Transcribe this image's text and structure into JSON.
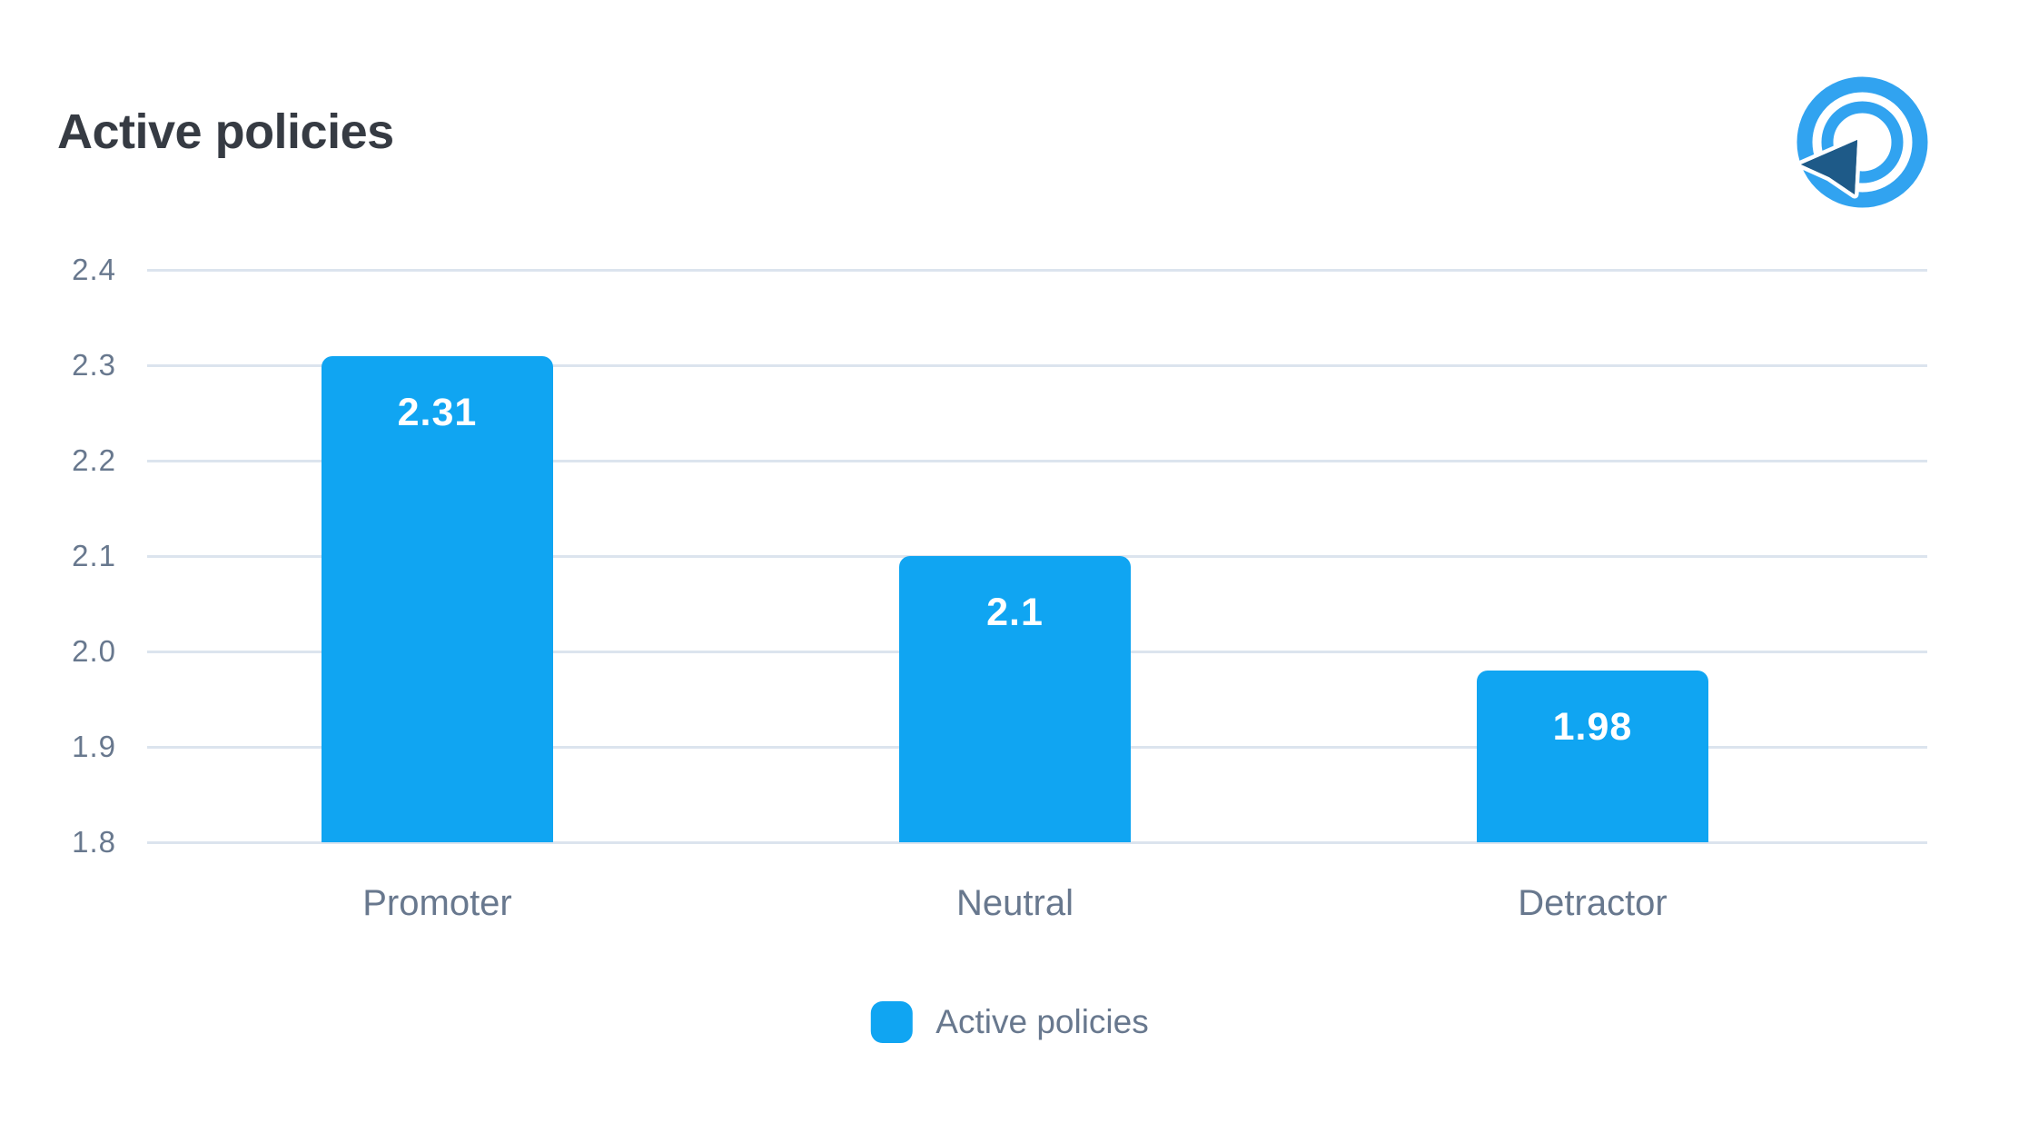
{
  "header": {
    "title": "Active policies"
  },
  "logo": {
    "name": "target-cursor-logo",
    "ring_color": "#31a3f0",
    "arrow_color": "#1e5a88"
  },
  "chart_data": {
    "type": "bar",
    "title": "Active policies",
    "categories": [
      "Promoter",
      "Neutral",
      "Detractor"
    ],
    "values": [
      2.31,
      2.1,
      1.98
    ],
    "value_labels": [
      "2.31",
      "2.1",
      "1.98"
    ],
    "ylim": [
      1.8,
      2.4
    ],
    "yticks": [
      "2.4",
      "2.3",
      "2.2",
      "2.1",
      "2.0",
      "1.9",
      "1.8"
    ],
    "xlabel": "",
    "ylabel": "",
    "grid": true,
    "grid_color": "#dce4ee",
    "bar_color": "#10a5f2",
    "value_label_color": "#ffffff",
    "axis_text_color": "#68788e",
    "legend": {
      "label": "Active policies",
      "position": "bottom",
      "swatch_color": "#10a5f2"
    }
  }
}
